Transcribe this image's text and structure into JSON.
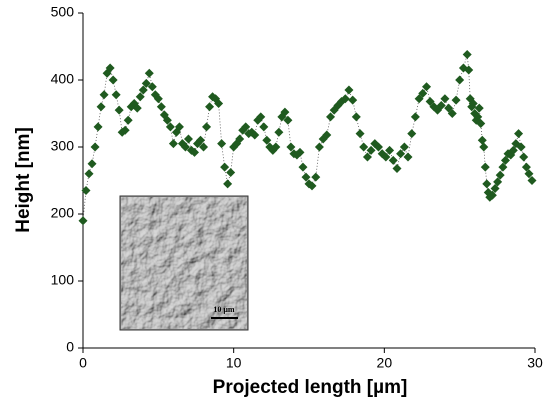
{
  "chart_data": {
    "type": "line",
    "xlabel": "Projected length [µm]",
    "ylabel": "Height [nm]",
    "inset_scale_label": "10 μm",
    "xlim": [
      0,
      30
    ],
    "xticks": [
      0,
      10,
      20,
      30
    ],
    "ylim": [
      0,
      500
    ],
    "yticks": [
      0,
      100,
      200,
      300,
      400,
      500
    ],
    "x": [
      0,
      0.2,
      0.4,
      0.6,
      0.8,
      1,
      1.2,
      1.4,
      1.6,
      1.8,
      2,
      2.2,
      2.4,
      2.6,
      2.8,
      3,
      3.2,
      3.4,
      3.6,
      3.8,
      4,
      4.2,
      4.4,
      4.6,
      4.8,
      5,
      5.2,
      5.4,
      5.6,
      5.8,
      6,
      6.2,
      6.4,
      6.6,
      6.8,
      7,
      7.2,
      7.4,
      7.6,
      7.8,
      8,
      8.2,
      8.4,
      8.6,
      8.8,
      9,
      9.2,
      9.4,
      9.6,
      9.8,
      10,
      10.2,
      10.4,
      10.6,
      10.8,
      11,
      11.2,
      11.4,
      11.6,
      11.8,
      12,
      12.2,
      12.4,
      12.6,
      12.8,
      13,
      13.2,
      13.4,
      13.6,
      13.8,
      14,
      14.2,
      14.4,
      14.6,
      14.8,
      15,
      15.2,
      15.45,
      15.69,
      15.94,
      16.18,
      16.43,
      16.67,
      16.92,
      17.16,
      17.41,
      17.65,
      17.9,
      18.14,
      18.39,
      18.63,
      18.88,
      19.12,
      19.37,
      19.61,
      19.86,
      20.1,
      20.35,
      20.59,
      20.84,
      21.08,
      21.33,
      21.57,
      21.82,
      22.06,
      22.31,
      22.55,
      22.8,
      23.04,
      23.29,
      23.53,
      23.78,
      24.02,
      24.27,
      24.51,
      24.76,
      25,
      25.25,
      25.5,
      25.6,
      25.7,
      25.8,
      25.9,
      26,
      26.1,
      26.2,
      26.3,
      26.4,
      26.5,
      26.6,
      26.7,
      26.8,
      26.9,
      27,
      27.17,
      27.35,
      27.52,
      27.69,
      27.87,
      28.04,
      28.21,
      28.39,
      28.56,
      28.73,
      28.91,
      29.08,
      29.25,
      29.43,
      29.6,
      29.8
    ],
    "series": [
      {
        "color": "#1f5a1f",
        "values": [
          190,
          235,
          260,
          275,
          300,
          330,
          360,
          378,
          410,
          418,
          400,
          378,
          355,
          322,
          325,
          340,
          360,
          365,
          358,
          375,
          385,
          395,
          410,
          390,
          378,
          372,
          360,
          348,
          340,
          330,
          305,
          322,
          330,
          305,
          300,
          312,
          295,
          292,
          305,
          310,
          300,
          330,
          360,
          375,
          372,
          365,
          305,
          270,
          245,
          262,
          300,
          305,
          312,
          325,
          330,
          320,
          322,
          318,
          340,
          345,
          330,
          310,
          300,
          295,
          300,
          322,
          345,
          352,
          340,
          300,
          290,
          288,
          292,
          270,
          255,
          245,
          242,
          255,
          300,
          312,
          318,
          345,
          355,
          362,
          368,
          372,
          385,
          370,
          345,
          320,
          300,
          285,
          295,
          305,
          300,
          290,
          285,
          295,
          280,
          268,
          290,
          300,
          285,
          320,
          345,
          372,
          380,
          390,
          368,
          360,
          355,
          362,
          372,
          358,
          350,
          370,
          400,
          418,
          438,
          415,
          372,
          360,
          365,
          350,
          340,
          345,
          358,
          335,
          310,
          300,
          270,
          245,
          232,
          225,
          228,
          238,
          248,
          258,
          270,
          280,
          290,
          288,
          295,
          305,
          320,
          300,
          285,
          270,
          260,
          250
        ]
      }
    ]
  }
}
